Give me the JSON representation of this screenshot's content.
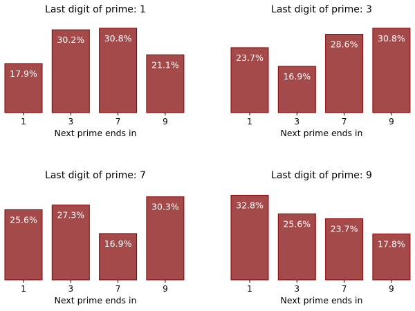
{
  "chart_data": [
    {
      "type": "bar",
      "title": "Last digit of prime: 1",
      "xlabel": "Next prime ends in",
      "ylabel": "",
      "categories": [
        "1",
        "3",
        "7",
        "9"
      ],
      "values": [
        17.9,
        30.2,
        30.8,
        21.1
      ],
      "data_labels": [
        "17.9%",
        "30.2%",
        "30.8%",
        "21.1%"
      ],
      "ylim": [
        0,
        32.0
      ],
      "grid": false,
      "legend": "none"
    },
    {
      "type": "bar",
      "title": "Last digit of prime: 3",
      "xlabel": "Next prime ends in",
      "ylabel": "",
      "categories": [
        "1",
        "3",
        "7",
        "9"
      ],
      "values": [
        23.7,
        16.9,
        28.6,
        30.8
      ],
      "data_labels": [
        "23.7%",
        "16.9%",
        "28.6%",
        "30.8%"
      ],
      "ylim": [
        0,
        32.0
      ],
      "grid": false,
      "legend": "none"
    },
    {
      "type": "bar",
      "title": "Last digit of prime: 7",
      "xlabel": "Next prime ends in",
      "ylabel": "",
      "categories": [
        "1",
        "3",
        "7",
        "9"
      ],
      "values": [
        25.6,
        27.3,
        16.9,
        30.3
      ],
      "data_labels": [
        "25.6%",
        "27.3%",
        "16.9%",
        "30.3%"
      ],
      "ylim": [
        0,
        32.0
      ],
      "grid": false,
      "legend": "none"
    },
    {
      "type": "bar",
      "title": "Last digit of prime: 9",
      "xlabel": "Next prime ends in",
      "ylabel": "",
      "categories": [
        "1",
        "3",
        "7",
        "9"
      ],
      "values": [
        32.8,
        25.6,
        23.7,
        17.8
      ],
      "data_labels": [
        "32.8%",
        "25.6%",
        "23.7%",
        "17.8%"
      ],
      "ylim": [
        0,
        34.0
      ],
      "grid": false,
      "legend": "none"
    }
  ],
  "colors": {
    "bar_fill": "#a44a4a",
    "bar_edge": "#8b0000",
    "bar_label": "#ffffff",
    "text": "#000000"
  }
}
